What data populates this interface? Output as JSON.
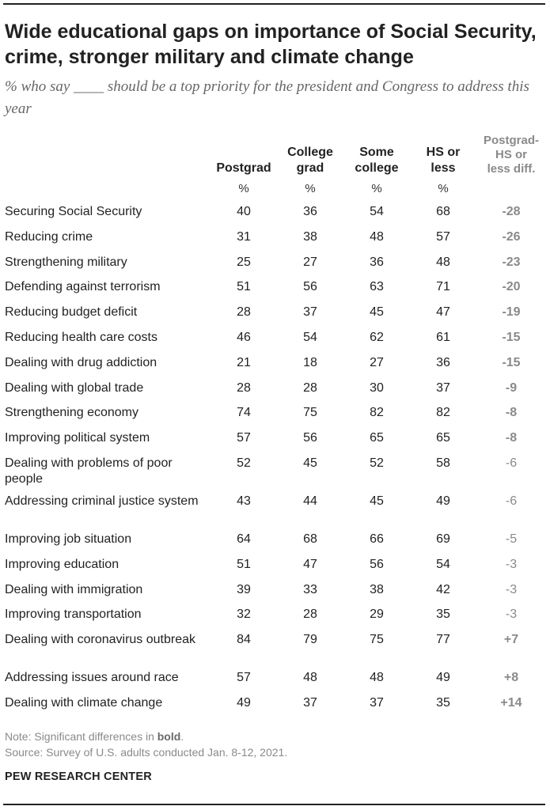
{
  "title": "Wide educational gaps on importance of Social Security, crime, stronger military and climate change",
  "subtitle": "% who say ____ should be a top priority for the president and Congress to address this year",
  "chart_data": {
    "type": "table",
    "columns": [
      {
        "key": "postgrad",
        "label": "Postgrad",
        "unit": "%"
      },
      {
        "key": "college_grad",
        "label": "College grad",
        "unit": "%"
      },
      {
        "key": "some_college",
        "label": "Some college",
        "unit": "%"
      },
      {
        "key": "hs_or_less",
        "label": "HS or less",
        "unit": "%"
      },
      {
        "key": "diff",
        "label": "Postgrad-HS or less diff.",
        "unit": ""
      }
    ],
    "rows": [
      {
        "label": "Securing Social Security",
        "values": [
          40,
          36,
          54,
          68
        ],
        "diff": "-28",
        "significant": true
      },
      {
        "label": "Reducing crime",
        "values": [
          31,
          38,
          48,
          57
        ],
        "diff": "-26",
        "significant": true
      },
      {
        "label": "Strengthening military",
        "values": [
          25,
          27,
          36,
          48
        ],
        "diff": "-23",
        "significant": true
      },
      {
        "label": "Defending against terrorism",
        "values": [
          51,
          56,
          63,
          71
        ],
        "diff": "-20",
        "significant": true
      },
      {
        "label": "Reducing budget deficit",
        "values": [
          28,
          37,
          45,
          47
        ],
        "diff": "-19",
        "significant": true
      },
      {
        "label": "Reducing health care costs",
        "values": [
          46,
          54,
          62,
          61
        ],
        "diff": "-15",
        "significant": true
      },
      {
        "label": "Dealing with drug addiction",
        "values": [
          21,
          18,
          27,
          36
        ],
        "diff": "-15",
        "significant": true
      },
      {
        "label": "Dealing with global trade",
        "values": [
          28,
          28,
          30,
          37
        ],
        "diff": "-9",
        "significant": true
      },
      {
        "label": "Strengthening economy",
        "values": [
          74,
          75,
          82,
          82
        ],
        "diff": "-8",
        "significant": true
      },
      {
        "label": "Improving political system",
        "values": [
          57,
          56,
          65,
          65
        ],
        "diff": "-8",
        "significant": true
      },
      {
        "label": "Dealing with problems of poor people",
        "values": [
          52,
          45,
          52,
          58
        ],
        "diff": "-6",
        "significant": false
      },
      {
        "label": "Addressing criminal justice system",
        "values": [
          43,
          44,
          45,
          49
        ],
        "diff": "-6",
        "significant": false
      },
      {
        "label": "Improving job situation",
        "values": [
          64,
          68,
          66,
          69
        ],
        "diff": "-5",
        "significant": false
      },
      {
        "label": "Improving education",
        "values": [
          51,
          47,
          56,
          54
        ],
        "diff": "-3",
        "significant": false
      },
      {
        "label": "Dealing with immigration",
        "values": [
          39,
          33,
          38,
          42
        ],
        "diff": "-3",
        "significant": false
      },
      {
        "label": "Improving transportation",
        "values": [
          32,
          28,
          29,
          35
        ],
        "diff": "-3",
        "significant": false
      },
      {
        "label": "Dealing with coronavirus outbreak",
        "values": [
          84,
          79,
          75,
          77
        ],
        "diff": "+7",
        "significant": true
      },
      {
        "label": "Addressing issues around race",
        "values": [
          57,
          48,
          48,
          49
        ],
        "diff": "+8",
        "significant": true
      },
      {
        "label": "Dealing with climate change",
        "values": [
          49,
          37,
          37,
          35
        ],
        "diff": "+14",
        "significant": true
      }
    ]
  },
  "note_prefix": "Note: Significant differences in ",
  "note_bold": "bold",
  "note_suffix": ".",
  "source": "Source: Survey of U.S. adults conducted Jan. 8-12, 2021.",
  "organization": "PEW RESEARCH CENTER"
}
